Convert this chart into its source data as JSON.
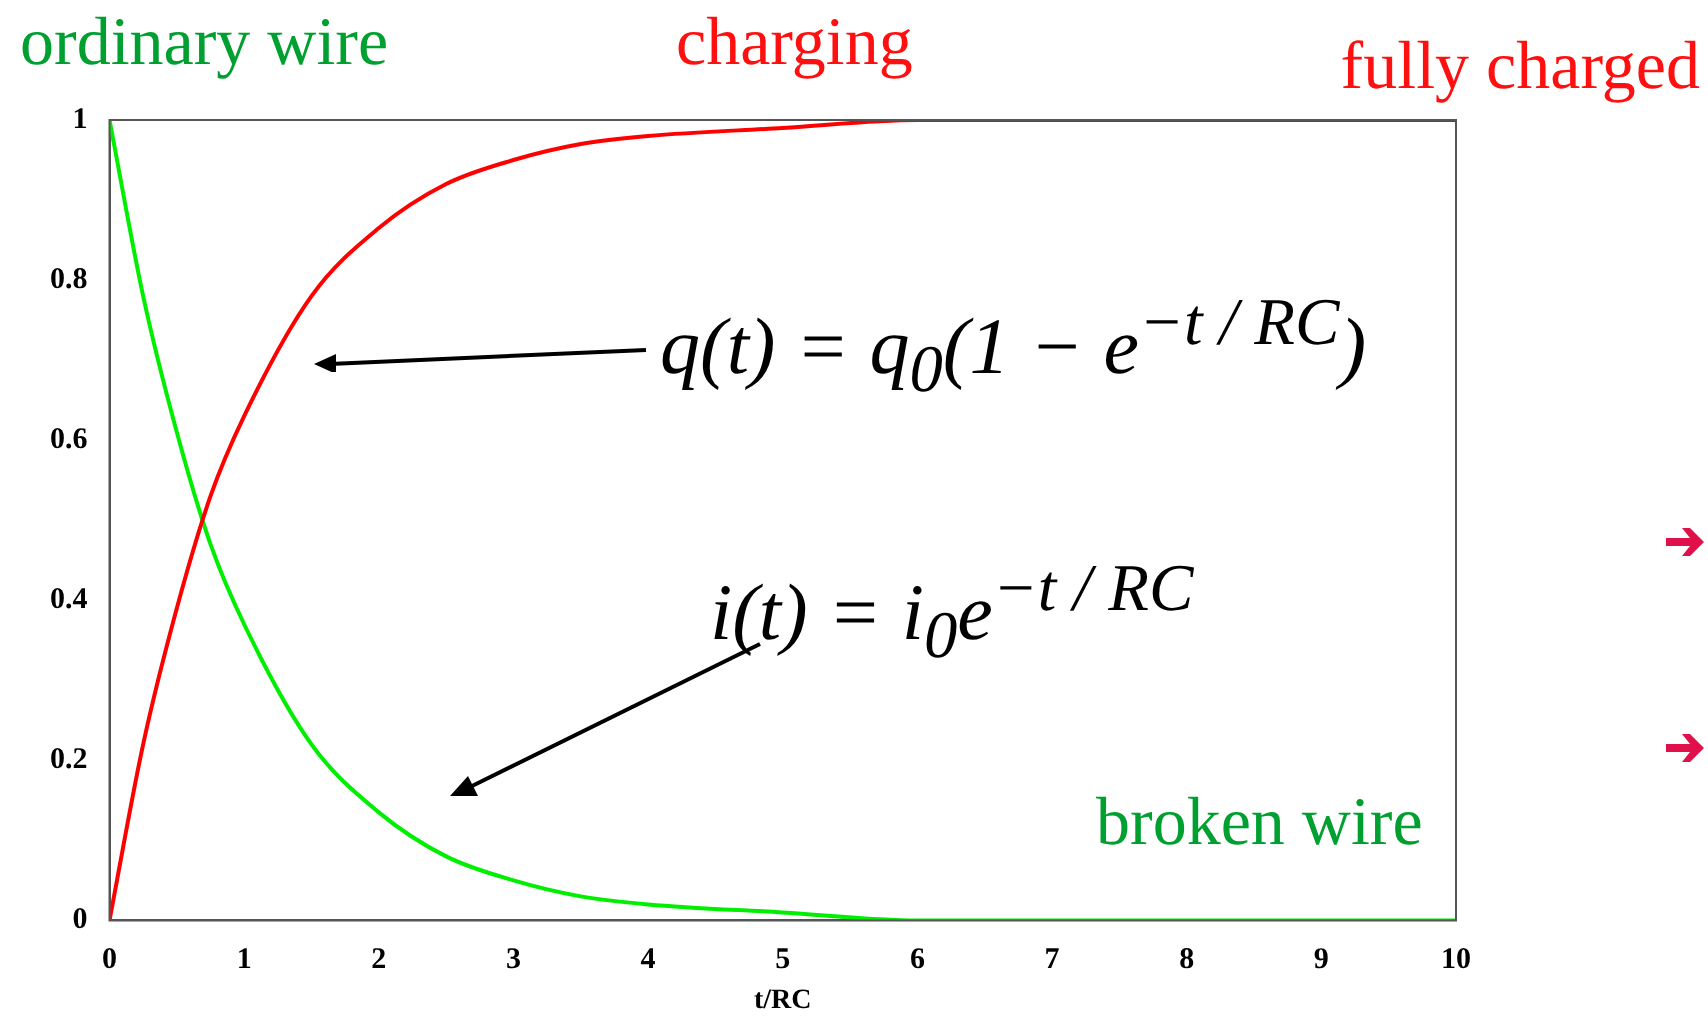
{
  "chart_data": {
    "type": "line",
    "xlabel": "t/RC",
    "x": [
      0,
      0.25,
      0.5,
      0.75,
      1,
      1.5,
      2,
      2.5,
      3,
      3.5,
      4,
      5,
      6,
      7,
      8,
      9,
      10
    ],
    "series": [
      {
        "color": "#ff0000",
        "values": [
          0,
          0.22,
          0.39,
          0.53,
          0.63,
          0.78,
          0.865,
          0.92,
          0.95,
          0.97,
          0.98,
          0.99,
          1,
          1,
          1,
          1,
          1
        ]
      },
      {
        "color": "#00ee00",
        "values": [
          1,
          0.78,
          0.61,
          0.47,
          0.37,
          0.22,
          0.135,
          0.08,
          0.05,
          0.03,
          0.02,
          0.01,
          0,
          0,
          0,
          0,
          0
        ]
      }
    ],
    "xlim": [
      0,
      10
    ],
    "xticks": [
      0,
      1,
      2,
      3,
      4,
      5,
      6,
      7,
      8,
      9,
      10
    ],
    "ylim": [
      0,
      1
    ],
    "yticks": [
      0,
      0.2,
      0.4,
      0.6,
      0.8,
      1
    ],
    "grid": false,
    "legend": false,
    "marker": "none",
    "line_style": "solid",
    "annotations": [
      "ordinary wire",
      "charging",
      "fully charged",
      "q(t) = q$_{0}$(1 − e$^{−t / RC}$)",
      "i(t) = i$_{0}$e$^{−t / RC}$",
      "broken wire"
    ]
  }
}
